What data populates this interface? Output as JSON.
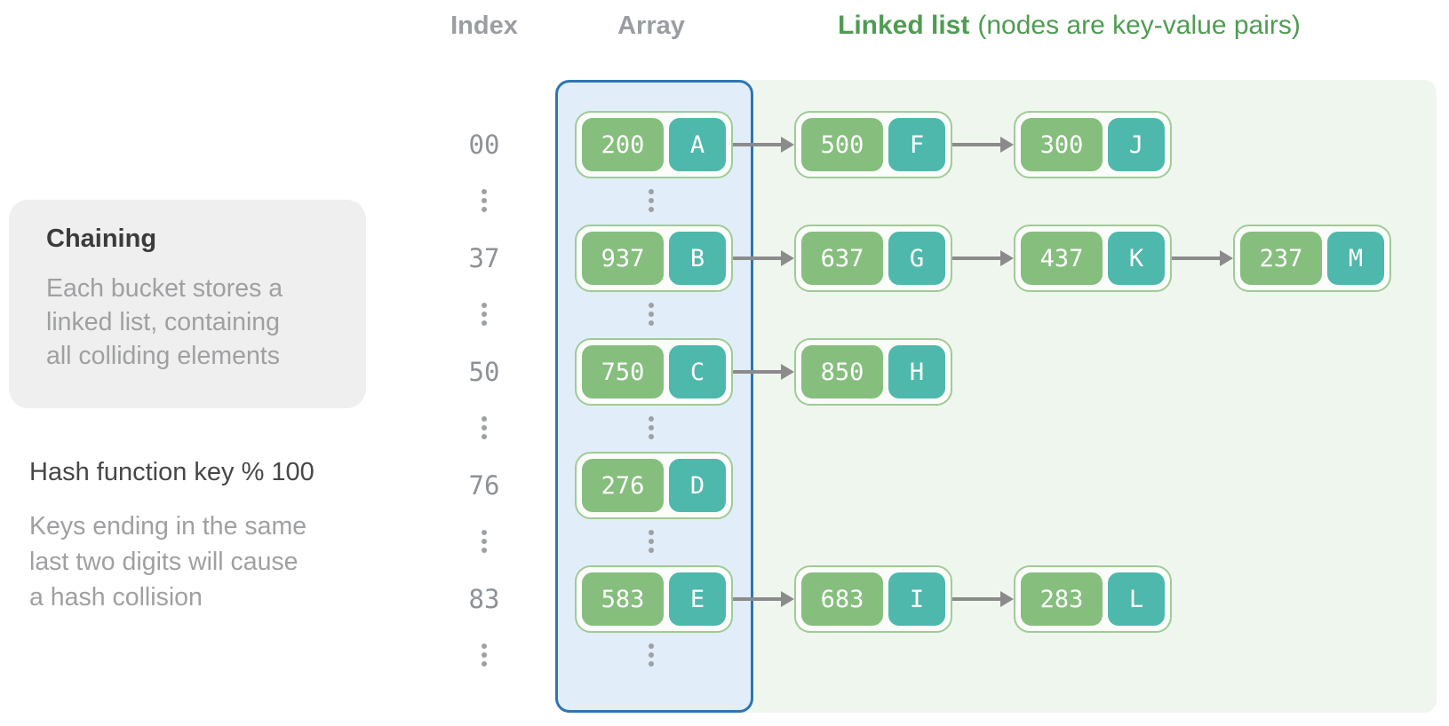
{
  "header": {
    "index_label": "Index",
    "array_label": "Array",
    "linked_list_label": "Linked list",
    "linked_list_note": "(nodes are key-value pairs)"
  },
  "sidebar": {
    "chaining_card": {
      "title": "Chaining",
      "body": "Each bucket stores a\nlinked list, containing\nall colliding elements"
    },
    "hash_note": {
      "title": "Hash function key % 100",
      "body": "Keys ending in the same\nlast two digits will cause\na hash collision"
    }
  },
  "diagram": {
    "rows": [
      {
        "type": "bucket",
        "index": "00",
        "chain": [
          {
            "key": "200",
            "value": "A"
          },
          {
            "key": "500",
            "value": "F"
          },
          {
            "key": "300",
            "value": "J"
          }
        ]
      },
      {
        "type": "dots"
      },
      {
        "type": "bucket",
        "index": "37",
        "chain": [
          {
            "key": "937",
            "value": "B"
          },
          {
            "key": "637",
            "value": "G"
          },
          {
            "key": "437",
            "value": "K"
          },
          {
            "key": "237",
            "value": "M"
          }
        ]
      },
      {
        "type": "dots"
      },
      {
        "type": "bucket",
        "index": "50",
        "chain": [
          {
            "key": "750",
            "value": "C"
          },
          {
            "key": "850",
            "value": "H"
          }
        ]
      },
      {
        "type": "dots"
      },
      {
        "type": "bucket",
        "index": "76",
        "chain": [
          {
            "key": "276",
            "value": "D"
          }
        ]
      },
      {
        "type": "dots"
      },
      {
        "type": "bucket",
        "index": "83",
        "chain": [
          {
            "key": "583",
            "value": "E"
          },
          {
            "key": "683",
            "value": "I"
          },
          {
            "key": "283",
            "value": "L"
          }
        ]
      },
      {
        "type": "dots"
      }
    ]
  },
  "colors": {
    "header_gray": "#9A9DA1",
    "header_green": "#4F9C53",
    "index_text": "#8D9296",
    "dots": "#9CA1A6",
    "node_key_bg": "#86BE7E",
    "node_value_bg": "#4FB8AC",
    "node_border": "#9FCB96",
    "node_bg": "#FBFDFA",
    "node_text": "#FFFFFF",
    "array_fill": "#E1EDF8",
    "array_border": "#2E76B1",
    "panel_bg": "#EFF6EE",
    "arrow": "#8B8B8B",
    "card_bg": "#EFEFEF",
    "card_title": "#3B3B3B",
    "muted_text": "#9FA0A2",
    "dark_text": "#474747"
  }
}
